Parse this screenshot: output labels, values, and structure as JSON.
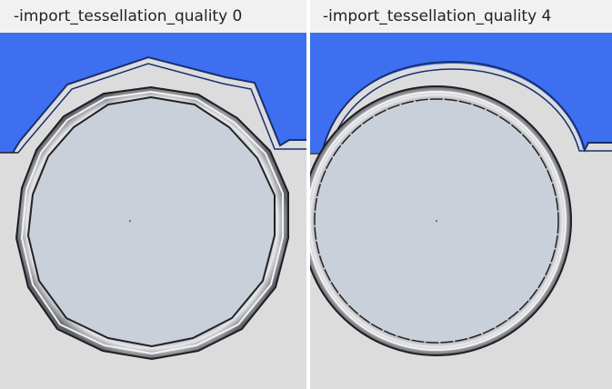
{
  "panels": [
    {
      "caption": "-import_tessellation_quality 0",
      "tessellation_quality": 0
    },
    {
      "caption": "-import_tessellation_quality 4",
      "tessellation_quality": 4
    }
  ],
  "colors": {
    "top_body": "#3d6ff0",
    "top_body_edge": "#18306e",
    "background": "#dcdcdc",
    "disc_face": "#c9d0da",
    "ring_metal": "#b4b6ba",
    "outline": "#222222",
    "caption_bg": "#f1f1f1"
  }
}
